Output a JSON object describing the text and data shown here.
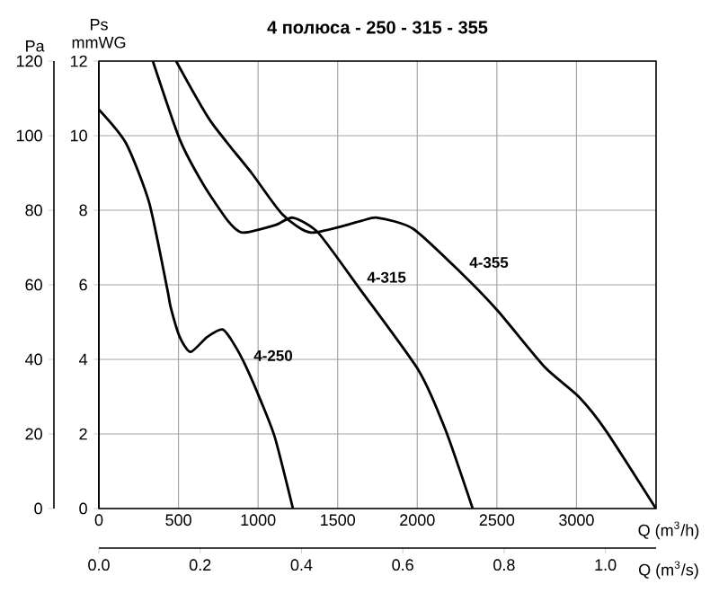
{
  "chart_data": {
    "type": "line",
    "title": "4 полюса - 250 - 315 - 355",
    "xlabel": "Q (m$^{3}$/h)",
    "x2label": "Q (m$^{3}$/s)",
    "ylabel": "Pa",
    "y2label": "Ps mmWG",
    "xlim": [
      0,
      3500
    ],
    "xticks": [
      0,
      500,
      1000,
      1500,
      2000,
      2500,
      3000
    ],
    "x2lim": [
      0,
      1.1
    ],
    "x2ticks": [
      {
        "value": 0,
        "label": "0.0"
      },
      0.2,
      0.4,
      0.6,
      0.8,
      {
        "value": 1,
        "label": "1.0"
      }
    ],
    "ylim": [
      0,
      120
    ],
    "yticks": [
      0,
      20,
      40,
      60,
      80,
      100,
      120
    ],
    "y2lim": [
      0,
      12
    ],
    "y2ticks": [
      0,
      2,
      4,
      6,
      8,
      10,
      12
    ],
    "grid": true,
    "legend": false,
    "series": [
      {
        "name": "4-250",
        "color": "#000000",
        "x": [
          0,
          170,
          316,
          429,
          451,
          508,
          576,
          680,
          779,
          850,
          925,
          1016,
          1106,
          1219
        ],
        "values": [
          107,
          98,
          82,
          59,
          54,
          46,
          42,
          46,
          48,
          44,
          38,
          29,
          19,
          0
        ]
      },
      {
        "name": "4-315",
        "color": "#000000",
        "x": [
          339,
          508,
          655,
          813,
          903,
          1106,
          1219,
          1377,
          1637,
          2009,
          2178,
          2348
        ],
        "values": [
          120,
          99,
          87,
          77,
          74,
          76,
          78,
          74,
          59,
          37,
          21,
          0
        ]
      },
      {
        "name": "4-355",
        "color": "#000000",
        "x": [
          485,
          700,
          959,
          1151,
          1332,
          1637,
          1749,
          1975,
          2280,
          2506,
          2799,
          3014,
          3183,
          3499
        ],
        "values": [
          120,
          104,
          90,
          79,
          74,
          77,
          78,
          75,
          63,
          53,
          38,
          30,
          21,
          0
        ]
      }
    ]
  }
}
